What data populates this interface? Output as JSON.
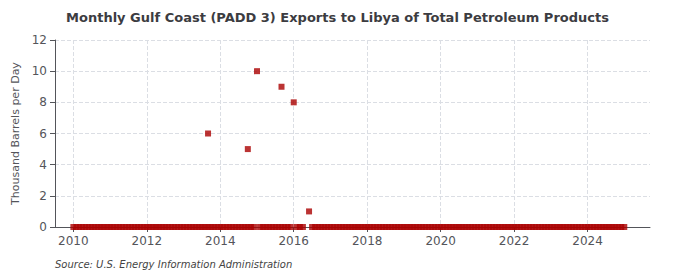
{
  "chart_data": {
    "type": "scatter",
    "title": "Monthly Gulf Coast (PADD 3) Exports to Libya of Total Petroleum Products",
    "ylabel": "Thousand Barrels per Day",
    "source": "Source: U.S. Energy Information Administration",
    "color": "#aa0000",
    "marker": "square",
    "grid": true,
    "xlim": [
      2009.5,
      2025.7
    ],
    "xticks": [
      2010,
      2012,
      2014,
      2016,
      2018,
      2020,
      2022,
      2024
    ],
    "ylim": [
      0,
      12
    ],
    "yticks": [
      0,
      2,
      4,
      6,
      8,
      10,
      12
    ],
    "x": [
      2010.0,
      2010.083,
      2010.167,
      2010.25,
      2010.333,
      2010.417,
      2010.5,
      2010.583,
      2010.667,
      2010.75,
      2010.833,
      2010.917,
      2011.0,
      2011.083,
      2011.167,
      2011.25,
      2011.333,
      2011.417,
      2011.5,
      2011.583,
      2011.667,
      2011.75,
      2011.833,
      2011.917,
      2012.0,
      2012.083,
      2012.167,
      2012.25,
      2012.333,
      2012.417,
      2012.5,
      2012.583,
      2012.667,
      2012.75,
      2012.833,
      2012.917,
      2013.0,
      2013.083,
      2013.167,
      2013.25,
      2013.333,
      2013.417,
      2013.5,
      2013.583,
      2013.667,
      2013.75,
      2013.833,
      2013.917,
      2013.667,
      2014.0,
      2014.083,
      2014.167,
      2014.25,
      2014.333,
      2014.417,
      2014.5,
      2014.583,
      2014.667,
      2014.75,
      2014.833,
      2014.917,
      2014.75,
      2015.0,
      2015.083,
      2015.167,
      2015.25,
      2015.333,
      2015.417,
      2015.5,
      2015.583,
      2015.667,
      2015.75,
      2015.833,
      2015.917,
      2015.667,
      2016.0,
      2016.083,
      2016.167,
      2016.25,
      2016.417,
      2016.5,
      2016.583,
      2016.667,
      2016.75,
      2016.833,
      2016.917,
      2017.0,
      2017.083,
      2017.167,
      2017.25,
      2017.333,
      2017.417,
      2017.5,
      2017.583,
      2017.667,
      2017.75,
      2017.833,
      2017.917,
      2018.0,
      2018.083,
      2018.167,
      2018.25,
      2018.333,
      2018.417,
      2018.5,
      2018.583,
      2018.667,
      2018.75,
      2018.833,
      2018.917,
      2019.0,
      2019.083,
      2019.167,
      2019.25,
      2019.333,
      2019.417,
      2019.5,
      2019.583,
      2019.667,
      2019.75,
      2019.833,
      2019.917,
      2020.0,
      2020.083,
      2020.167,
      2020.25,
      2020.333,
      2020.417,
      2020.5,
      2020.583,
      2020.667,
      2020.75,
      2020.833,
      2020.917,
      2021.0,
      2021.083,
      2021.167,
      2021.25,
      2021.333,
      2021.417,
      2021.5,
      2021.583,
      2021.667,
      2021.75,
      2021.833,
      2021.917,
      2022.0,
      2022.083,
      2022.167,
      2022.25,
      2022.333,
      2022.417,
      2022.5,
      2022.583,
      2022.667,
      2022.75,
      2022.833,
      2022.917,
      2023.0,
      2023.083,
      2023.167,
      2023.25,
      2023.333,
      2023.417,
      2023.5,
      2023.583,
      2023.667,
      2023.75,
      2023.833,
      2023.917,
      2024.0,
      2024.083,
      2024.167,
      2024.25,
      2024.333,
      2024.417,
      2024.5,
      2024.583,
      2024.667,
      2024.75,
      2024.833,
      2024.917,
      2025.0
    ],
    "values": [
      0,
      0,
      0,
      0,
      0,
      0,
      0,
      0,
      0,
      0,
      0,
      0,
      0,
      0,
      0,
      0,
      0,
      0,
      0,
      0,
      0,
      0,
      0,
      0,
      0,
      0,
      0,
      0,
      0,
      0,
      0,
      0,
      0,
      0,
      0,
      0,
      0,
      0,
      0,
      0,
      0,
      0,
      0,
      0,
      0,
      0,
      0,
      0,
      6.0,
      0,
      0,
      0,
      0,
      0,
      0,
      0,
      0,
      0,
      0,
      0,
      0,
      5.0,
      10.0,
      0,
      0,
      0,
      0,
      0,
      0,
      0,
      0,
      0,
      0,
      0,
      9.0,
      8.0,
      0,
      0,
      0,
      1.0,
      0,
      0,
      0,
      0,
      0,
      0,
      0,
      0,
      0,
      0,
      0,
      0,
      0,
      0,
      0,
      0,
      0,
      0,
      0,
      0,
      0,
      0,
      0,
      0,
      0,
      0,
      0,
      0,
      0,
      0,
      0,
      0,
      0,
      0,
      0,
      0,
      0,
      0,
      0,
      0,
      0,
      0,
      0,
      0,
      0,
      0,
      0,
      0,
      0,
      0,
      0,
      0,
      0,
      0,
      0,
      0,
      0,
      0,
      0,
      0,
      0,
      0,
      0,
      0,
      0,
      0,
      0,
      0,
      0,
      0,
      0,
      0,
      0,
      0,
      0,
      0,
      0,
      0,
      0,
      0,
      0,
      0,
      0,
      0,
      0,
      0,
      0,
      0,
      0,
      0,
      0,
      0,
      0,
      0,
      0,
      0,
      0,
      0,
      0,
      0,
      0,
      0,
      0
    ]
  }
}
